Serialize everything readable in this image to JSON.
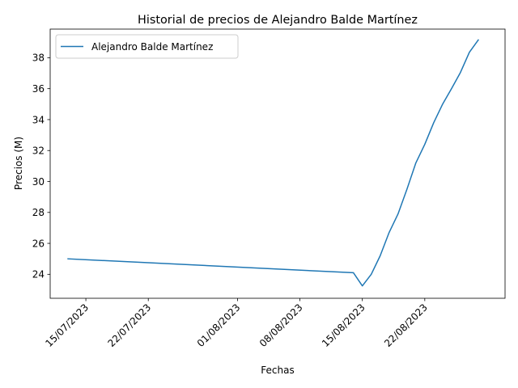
{
  "chart_data": {
    "type": "line",
    "title": "Historial de precios de Alejandro Balde Martínez",
    "xlabel": "Fechas",
    "ylabel": "Precios (M)",
    "x_ticks": [
      "15/07/2023",
      "22/07/2023",
      "01/08/2023",
      "08/08/2023",
      "15/08/2023",
      "22/08/2023"
    ],
    "y_ticks": [
      24,
      26,
      28,
      30,
      32,
      34,
      36,
      38
    ],
    "ylim": [
      22.45,
      39.85
    ],
    "xlim": [
      "2023-07-11",
      "2023-08-31"
    ],
    "grid": false,
    "legend_position": "upper-left",
    "series": [
      {
        "name": "Alejandro Balde Martínez",
        "color": "#1f77b4",
        "x": [
          "2023-07-13",
          "2023-08-14",
          "2023-08-15",
          "2023-08-16",
          "2023-08-17",
          "2023-08-18",
          "2023-08-19",
          "2023-08-20",
          "2023-08-21",
          "2023-08-22",
          "2023-08-23",
          "2023-08-24",
          "2023-08-25",
          "2023-08-26",
          "2023-08-27",
          "2023-08-28"
        ],
        "values": [
          25.0,
          24.1,
          23.25,
          24.0,
          25.2,
          26.7,
          27.9,
          29.5,
          31.2,
          32.4,
          33.8,
          35.0,
          36.0,
          37.05,
          38.35,
          39.15
        ]
      }
    ]
  }
}
